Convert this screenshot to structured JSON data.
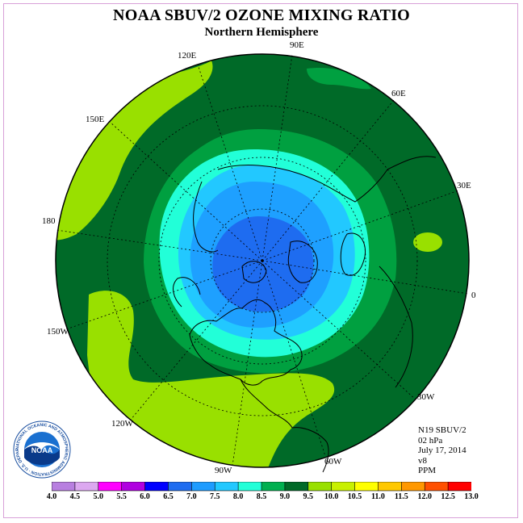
{
  "title": "NOAA SBUV/2 OZONE MIXING RATIO",
  "subtitle": "Northern Hemisphere",
  "longitude_labels": [
    {
      "text": "90E",
      "lon": 90
    },
    {
      "text": "60E",
      "lon": 60
    },
    {
      "text": "30E",
      "lon": 30
    },
    {
      "text": "0",
      "lon": 0
    },
    {
      "text": "30W",
      "lon": -30
    },
    {
      "text": "60W",
      "lon": -60
    },
    {
      "text": "90W",
      "lon": -90
    },
    {
      "text": "120W",
      "lon": -120
    },
    {
      "text": "150W",
      "lon": -150
    },
    {
      "text": "180",
      "lon": 180
    },
    {
      "text": "150E",
      "lon": 150
    },
    {
      "text": "120E",
      "lon": 120
    }
  ],
  "info": {
    "instrument": "N19 SBUV/2",
    "level": "02 hPa",
    "date": "July 17, 2014",
    "version": "v8",
    "units": "PPM"
  },
  "logo": {
    "text": "NOAA",
    "ring_text": "NATIONAL OCEANIC AND ATMOSPHERIC ADMINISTRATION · U.S. DEPARTMENT OF COMMERCE"
  },
  "colorbar": {
    "ticks": [
      "4.0",
      "4.5",
      "5.0",
      "5.5",
      "6.0",
      "6.5",
      "7.0",
      "7.5",
      "8.0",
      "8.5",
      "9.0",
      "9.5",
      "10.0",
      "10.5",
      "11.0",
      "11.5",
      "12.0",
      "12.5",
      "13.0"
    ],
    "colors": [
      "#b87fe0",
      "#dca8f0",
      "#ff00ff",
      "#b000e0",
      "#0000ff",
      "#1e6cf0",
      "#1e9cff",
      "#22c8ff",
      "#22ffd8",
      "#00b050",
      "#006a28",
      "#99e000",
      "#c8f000",
      "#ffff00",
      "#ffc800",
      "#ff9800",
      "#ff5000",
      "#ff0000",
      "#8b5a3c"
    ]
  },
  "colors": {
    "band_9_0": "#006a28",
    "band_8_5": "#00a040",
    "band_8_0": "#22ffd8",
    "band_7_5": "#22c8ff",
    "band_7_0": "#1ea0ff",
    "band_6_5": "#1e6cf0",
    "band_9_5": "#99e000"
  }
}
